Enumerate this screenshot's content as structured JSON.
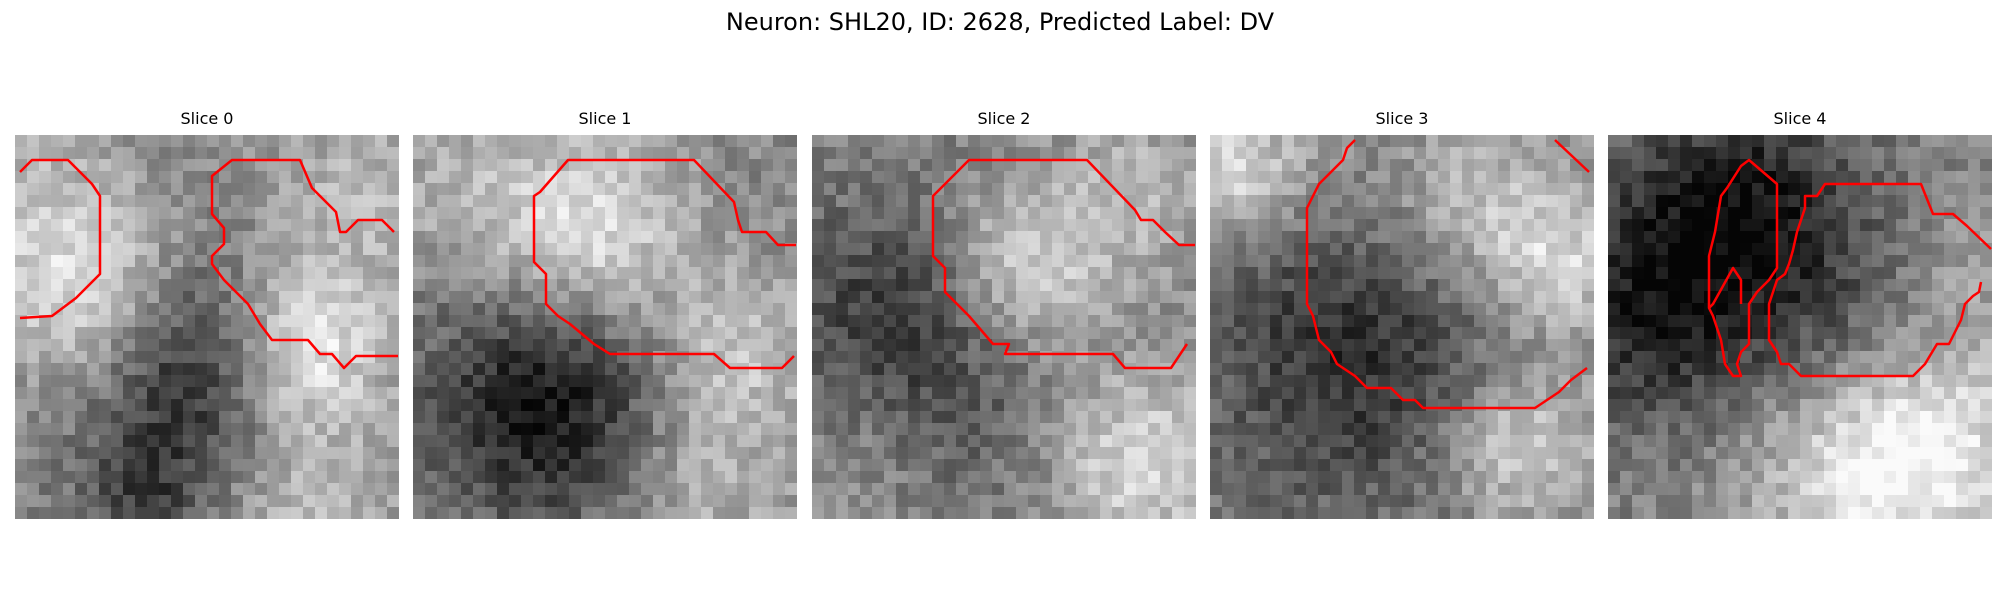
{
  "figure": {
    "title": "Neuron: SHL20, ID: 2628, Predicted Label: DV",
    "contour_color": "#ff0000"
  },
  "slices": [
    {
      "title": "Slice 0"
    },
    {
      "title": "Slice 1"
    },
    {
      "title": "Slice 2"
    },
    {
      "title": "Slice 3"
    },
    {
      "title": "Slice 4"
    }
  ]
}
